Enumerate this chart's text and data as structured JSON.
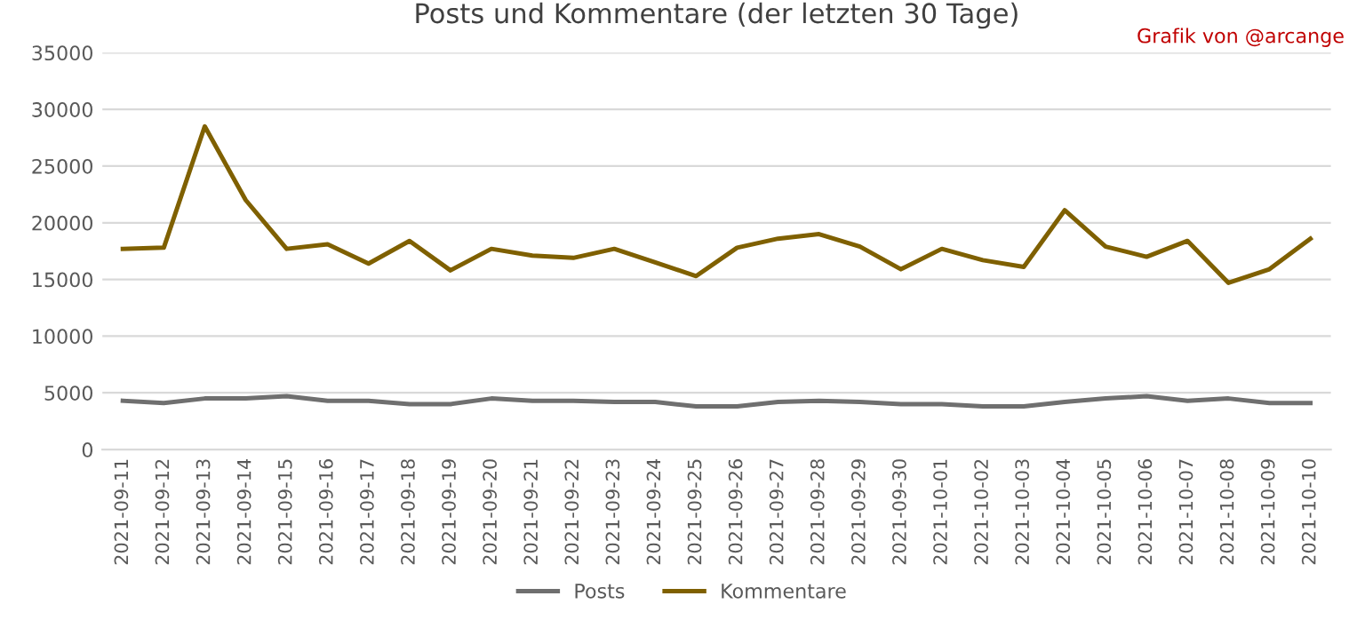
{
  "chart_data": {
    "type": "line",
    "title": "Posts und Kommentare (der letzten 30 Tage)",
    "annotations": [
      "Grafik von @arcange"
    ],
    "categories": [
      "2021-09-11",
      "2021-09-12",
      "2021-09-13",
      "2021-09-14",
      "2021-09-15",
      "2021-09-16",
      "2021-09-17",
      "2021-09-18",
      "2021-09-19",
      "2021-09-20",
      "2021-09-21",
      "2021-09-22",
      "2021-09-23",
      "2021-09-24",
      "2021-09-25",
      "2021-09-26",
      "2021-09-27",
      "2021-09-28",
      "2021-09-29",
      "2021-09-30",
      "2021-10-01",
      "2021-10-02",
      "2021-10-03",
      "2021-10-04",
      "2021-10-05",
      "2021-10-06",
      "2021-10-07",
      "2021-10-08",
      "2021-10-09",
      "2021-10-10"
    ],
    "series": [
      {
        "name": "Posts",
        "color": "#6f6f6f",
        "values": [
          4300,
          4100,
          4500,
          4500,
          4700,
          4300,
          4300,
          4000,
          4000,
          4500,
          4300,
          4300,
          4200,
          4200,
          3800,
          3800,
          4200,
          4300,
          4200,
          4000,
          4000,
          3800,
          3800,
          4200,
          4500,
          4700,
          4300,
          4500,
          4100,
          4100
        ]
      },
      {
        "name": "Kommentare",
        "color": "#7f6000",
        "values": [
          17700,
          17800,
          28500,
          22000,
          17700,
          18100,
          16400,
          18400,
          15800,
          17700,
          17100,
          16900,
          17700,
          16500,
          15300,
          17800,
          18600,
          19000,
          17900,
          15900,
          17700,
          16700,
          16100,
          21100,
          17900,
          17000,
          18400,
          14700,
          15900,
          18600
        ]
      }
    ],
    "ylim": [
      0,
      35000
    ],
    "yticks": [
      0,
      5000,
      10000,
      15000,
      20000,
      25000,
      30000,
      35000
    ],
    "grid": "y",
    "legend": "bottom",
    "marker": "none",
    "line_style": "solid"
  }
}
